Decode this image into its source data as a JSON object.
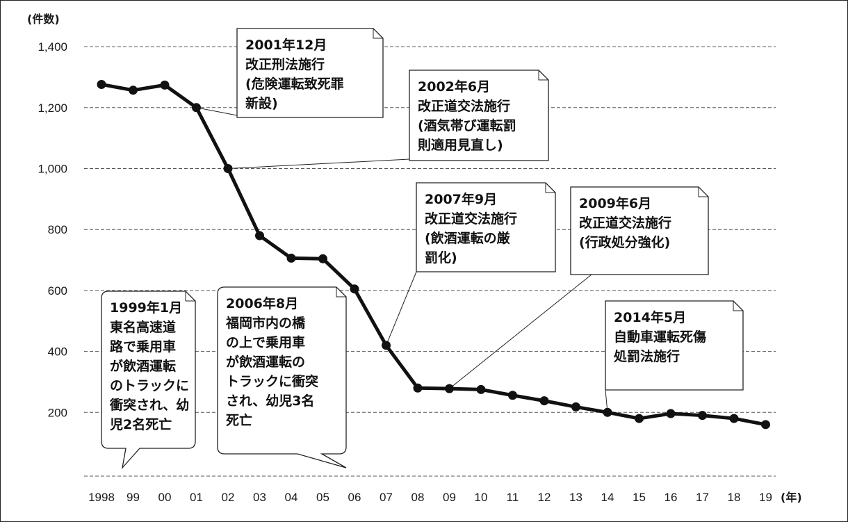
{
  "chart_data": {
    "type": "line",
    "y_unit_label": "(件数)",
    "x_unit_label": "(年)",
    "categories": [
      "1998",
      "99",
      "00",
      "01",
      "02",
      "03",
      "04",
      "05",
      "06",
      "07",
      "08",
      "09",
      "10",
      "11",
      "12",
      "13",
      "14",
      "15",
      "16",
      "17",
      "18",
      "19"
    ],
    "values": [
      1276,
      1257,
      1274,
      1200,
      1000,
      780,
      706,
      704,
      605,
      420,
      280,
      278,
      275,
      256,
      238,
      218,
      200,
      180,
      196,
      190,
      180,
      160
    ],
    "ylim": [
      0,
      1400
    ],
    "yticks": [
      200,
      400,
      600,
      800,
      1000,
      1200,
      1400
    ],
    "ytick_labels": [
      "200",
      "400",
      "600",
      "800",
      "1,000",
      "1,200",
      "1,400"
    ],
    "grid": true,
    "line_color": "#111111",
    "annotations": [
      {
        "lines": [
          "2001年12月",
          "改正刑法施行",
          "(危険運転致死罪",
          "新設)"
        ],
        "target_index": 3
      },
      {
        "lines": [
          "2002年6月",
          "改正道交法施行",
          "(酒気帯び運転罰",
          "則適用見直し)"
        ],
        "target_index": 4
      },
      {
        "lines": [
          "2007年9月",
          "改正道交法施行",
          "(飲酒運転の厳",
          "罰化)"
        ],
        "target_index": 9
      },
      {
        "lines": [
          "2009年6月",
          "改正道交法施行",
          "(行政処分強化)"
        ],
        "target_index": 11
      },
      {
        "lines": [
          "2014年5月",
          "自動車運転死傷",
          "処罰法施行"
        ],
        "target_index": 16
      },
      {
        "lines": [
          "1999年1月",
          "東名高速道",
          "路で乗用車",
          "が飲酒運転",
          "のトラックに",
          "衝突され、幼",
          "児2名死亡"
        ],
        "target_index": 1
      },
      {
        "lines": [
          "2006年8月",
          "福岡市内の橋",
          "の上で乗用車",
          "が飲酒運転の",
          "トラックに衝突",
          "され、幼児3名",
          "死亡"
        ],
        "target_index": 8
      }
    ]
  }
}
